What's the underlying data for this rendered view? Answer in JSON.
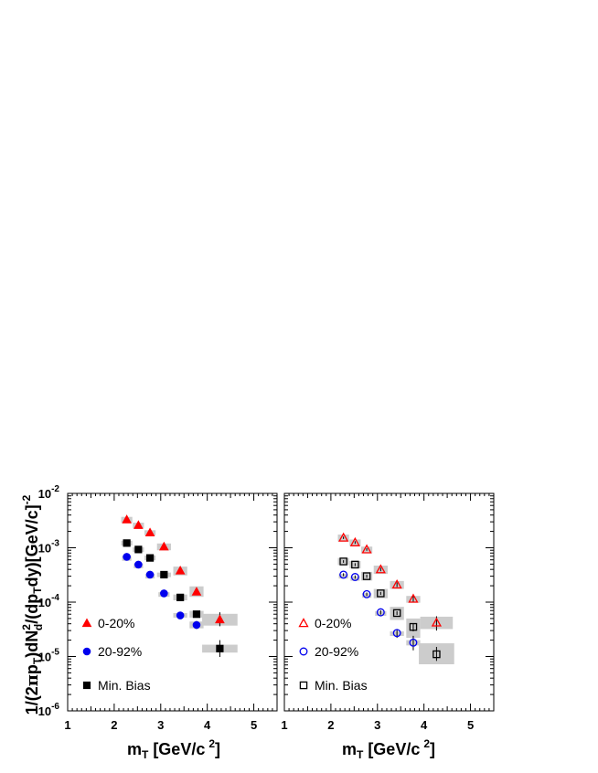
{
  "chart_data": [
    {
      "type": "scatter",
      "panel": "left",
      "xlabel": {
        "main": "m",
        "sub": "T",
        "rest": " [GeV/c",
        "sup": "2",
        "close": "]"
      },
      "ylabel": {
        "p1": "1/(2",
        "pi": "π",
        "p2": "p",
        "sub1": "T",
        "p3": ")dN",
        "sup1": "2",
        "sub2": "d",
        "p4": "/(dp",
        "sub3": "T",
        "p5": "dy)[GeV/c]",
        "sup2": "-2"
      },
      "x_tick_labels": [
        "1",
        "2",
        "3",
        "4",
        "5"
      ],
      "y_tick_labels": [
        {
          "base": "10",
          "exp": "-6"
        },
        {
          "base": "10",
          "exp": "-5"
        },
        {
          "base": "10",
          "exp": "-4"
        },
        {
          "base": "10",
          "exp": "-3"
        },
        {
          "base": "10",
          "exp": "-2"
        }
      ],
      "xlim": [
        1,
        5.5
      ],
      "ylim": [
        1e-06,
        0.01
      ],
      "ylog": true,
      "legend_position": "bottom-left",
      "series": [
        {
          "name": "0-20%",
          "marker": "triangle",
          "filled": true,
          "color": "#ff0000",
          "x": [
            2.27,
            2.52,
            2.77,
            3.07,
            3.42,
            3.77,
            4.27
          ],
          "y": [
            0.0033,
            0.0026,
            0.0019,
            0.00105,
            0.00038,
            0.000155,
            4.8e-05
          ],
          "err_low": [
            0.0031,
            0.0024,
            0.0018,
            0.00098,
            0.00035,
            0.000135,
            3.6e-05
          ],
          "err_high": [
            0.0035,
            0.0028,
            0.002,
            0.00112,
            0.00041,
            0.000175,
            6.5e-05
          ],
          "sys_halfwidth": [
            0.12,
            0.12,
            0.12,
            0.15,
            0.15,
            0.15,
            0.38
          ],
          "sys_low": [
            0.0029,
            0.0023,
            0.0017,
            0.0009,
            0.00031,
            0.000125,
            3.7e-05
          ],
          "sys_high": [
            0.0037,
            0.0029,
            0.0021,
            0.0012,
            0.00045,
            0.000195,
            6.1e-05
          ]
        },
        {
          "name": "20-92%",
          "marker": "circle",
          "filled": true,
          "color": "#0000ee",
          "x": [
            2.27,
            2.52,
            2.77,
            3.07,
            3.42,
            3.77
          ],
          "y": [
            0.00068,
            0.00049,
            0.00032,
            0.000145,
            5.7e-05,
            3.8e-05
          ],
          "err_low": [
            0.00064,
            0.00046,
            0.0003,
            0.000135,
            5.1e-05,
            3.2e-05
          ],
          "err_high": [
            0.00072,
            0.00052,
            0.00034,
            0.000155,
            6.3e-05,
            4.5e-05
          ],
          "sys_halfwidth": [
            0.1,
            0.1,
            0.1,
            0.12,
            0.15,
            0.15
          ],
          "sys_low": [
            0.00066,
            0.00047,
            0.00031,
            0.000138,
            5.2e-05,
            3.3e-05
          ],
          "sys_high": [
            0.0007,
            0.00051,
            0.00033,
            0.000152,
            6.3e-05,
            4.4e-05
          ]
        },
        {
          "name": "Min. Bias",
          "marker": "square",
          "filled": true,
          "color": "#000000",
          "x": [
            2.27,
            2.52,
            2.77,
            3.07,
            3.42,
            3.77,
            4.27
          ],
          "y": [
            0.00122,
            0.00093,
            0.00065,
            0.00032,
            0.000122,
            6e-05,
            1.4e-05
          ],
          "err_low": [
            0.00118,
            0.0009,
            0.00062,
            0.0003,
            0.000114,
            5.4e-05,
            9.8e-06
          ],
          "err_high": [
            0.00126,
            0.00096,
            0.00068,
            0.00034,
            0.00013,
            6.6e-05,
            2e-05
          ],
          "sys_halfwidth": [
            0.12,
            0.12,
            0.12,
            0.15,
            0.15,
            0.15,
            0.38
          ],
          "sys_low": [
            0.0011,
            0.00085,
            0.00059,
            0.00029,
            0.000108,
            5.2e-05,
            1.18e-05
          ],
          "sys_high": [
            0.00135,
            0.00102,
            0.00072,
            0.00035,
            0.000138,
            6.9e-05,
            1.65e-05
          ]
        }
      ]
    },
    {
      "type": "scatter",
      "panel": "right",
      "xlabel": {
        "main": "m",
        "sub": "T",
        "rest": " [GeV/c",
        "sup": "2",
        "close": "]"
      },
      "x_tick_labels": [
        "1",
        "2",
        "3",
        "4",
        "5"
      ],
      "xlim": [
        1,
        5.5
      ],
      "ylim": [
        1e-06,
        0.01
      ],
      "ylog": true,
      "legend_position": "bottom-left",
      "series": [
        {
          "name": "0-20%",
          "marker": "triangle",
          "filled": false,
          "color": "#ff0000",
          "x": [
            2.27,
            2.52,
            2.77,
            3.07,
            3.42,
            3.77,
            4.27
          ],
          "y": [
            0.00153,
            0.00125,
            0.00093,
            0.0004,
            0.00021,
            0.000115,
            4.2e-05
          ],
          "err_low": [
            0.00145,
            0.00118,
            0.00088,
            0.00037,
            0.00019,
            0.0001,
            3e-05
          ],
          "err_high": [
            0.00161,
            0.00132,
            0.00098,
            0.00043,
            0.00023,
            0.00013,
            5.5e-05
          ],
          "sys_halfwidth": [
            0.12,
            0.12,
            0.12,
            0.15,
            0.15,
            0.15,
            0.35
          ],
          "sys_low": [
            0.0013,
            0.00108,
            0.0008,
            0.00033,
            0.000175,
            9.75e-05,
            3.2e-05
          ],
          "sys_high": [
            0.00175,
            0.00142,
            0.00105,
            0.00047,
            0.000245,
            0.00013,
            5.4e-05
          ]
        },
        {
          "name": "20-92%",
          "marker": "circle",
          "filled": false,
          "color": "#0000ee",
          "x": [
            2.27,
            2.52,
            2.77,
            3.07,
            3.42,
            3.77
          ],
          "y": [
            0.00032,
            0.00029,
            0.00014,
            6.5e-05,
            2.7e-05,
            1.8e-05
          ],
          "err_low": [
            0.0003,
            0.00027,
            0.00013,
            5.9e-05,
            2.2e-05,
            1.3e-05
          ],
          "err_high": [
            0.00034,
            0.00031,
            0.00015,
            7.1e-05,
            3.2e-05,
            2.4e-05
          ],
          "sys_halfwidth": [
            0.1,
            0.1,
            0.1,
            0.12,
            0.15,
            0.15
          ],
          "sys_low": [
            0.00031,
            0.00028,
            0.000134,
            6.2e-05,
            2.5e-05,
            1.6e-05
          ],
          "sys_high": [
            0.00033,
            0.0003,
            0.000146,
            6.8e-05,
            2.9e-05,
            2e-05
          ]
        },
        {
          "name": "Min. Bias",
          "marker": "square",
          "filled": false,
          "color": "#000000",
          "x": [
            2.27,
            2.52,
            2.77,
            3.07,
            3.42,
            3.77,
            4.27
          ],
          "y": [
            0.00056,
            0.00049,
            0.0003,
            0.000145,
            6.3e-05,
            3.5e-05,
            1.1e-05
          ],
          "err_low": [
            0.00053,
            0.00046,
            0.00028,
            0.000136,
            5.8e-05,
            2.9e-05,
            8.3e-06
          ],
          "err_high": [
            0.00059,
            0.00052,
            0.00032,
            0.000154,
            6.8e-05,
            4.1e-05,
            1.5e-05
          ],
          "sys_halfwidth": [
            0.12,
            0.12,
            0.12,
            0.15,
            0.15,
            0.15,
            0.38
          ],
          "sys_low": [
            0.00048,
            0.00042,
            0.00025,
            0.000118,
            4.7e-05,
            2.2e-05,
            7.2e-06
          ],
          "sys_high": [
            0.00065,
            0.00057,
            0.00036,
            0.000175,
            8.2e-05,
            5e-05,
            1.75e-05
          ]
        }
      ]
    }
  ]
}
